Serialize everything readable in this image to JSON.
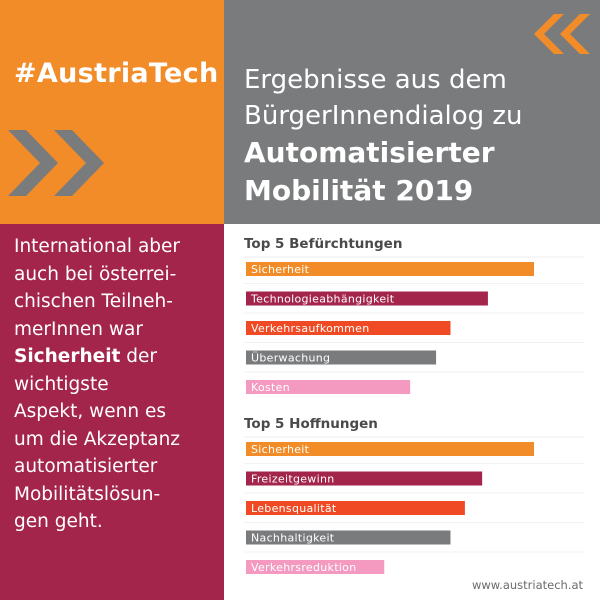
{
  "hashtag": "#AustriaTech",
  "title": {
    "line1": "Ergebnisse aus dem",
    "line2": "BürgerInnendialog zu",
    "line3": "Automatisierter",
    "line4": "Mobilität 2019"
  },
  "left_text": {
    "line1": "International aber",
    "line2": "auch bei österrei-",
    "line3": "chischen Teilneh-",
    "line4": "merInnen war",
    "line5_bold": "Sicherheit",
    "line5_rest": " der",
    "line6": "wichtigste",
    "line7": "Aspekt, wenn es",
    "line8": "um die Akzeptanz",
    "line9": "automatisierter",
    "line10": "Mobilitätslösun-",
    "line11": "gen geht."
  },
  "url": "www.austriatech.at",
  "colors": {
    "orange": "#f28c28",
    "grey": "#7a7b7d",
    "magenta": "#a3254c",
    "red_orange": "#ef4a23",
    "pink": "#f49ac1",
    "white": "#ffffff"
  },
  "icons": [
    "double-chevron-right-icon",
    "double-chevron-left-icon"
  ],
  "chart_data": [
    {
      "type": "bar",
      "orientation": "horizontal",
      "title": "Top 5 Befürchtungen",
      "categories": [
        "Sicherheit",
        "Technologieabhängigkeit",
        "Verkehrsaufkommen",
        "Überwachung",
        "Kosten"
      ],
      "values": [
        100,
        84,
        71,
        66,
        57
      ],
      "colors": [
        "#f28c28",
        "#a3254c",
        "#ef4a23",
        "#7a7b7d",
        "#f49ac1"
      ]
    },
    {
      "type": "bar",
      "orientation": "horizontal",
      "title": "Top 5 Hoffnungen",
      "categories": [
        "Sicherheit",
        "Freizeitgewinn",
        "Lebensqualität",
        "Nachhaltigkeit",
        "Verkehrsreduktion"
      ],
      "values": [
        100,
        82,
        76,
        71,
        48
      ],
      "colors": [
        "#f28c28",
        "#a3254c",
        "#ef4a23",
        "#7a7b7d",
        "#f49ac1"
      ]
    }
  ]
}
